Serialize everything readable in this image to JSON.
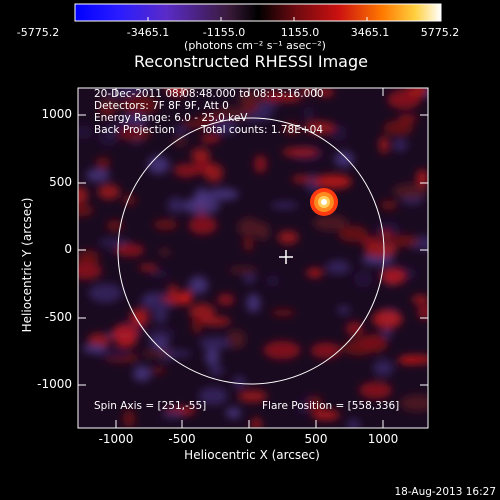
{
  "colorbar": {
    "tick_labels": [
      "-5775.2",
      "-3465.1",
      "-1155.0",
      "1155.0",
      "3465.1",
      "5775.2"
    ],
    "unit_label": "(photons cm⁻² s⁻¹ asec⁻²)",
    "range": [
      -5775.2,
      5775.2
    ]
  },
  "title": "Reconstructed RHESSI Image",
  "info": {
    "time_range": "20-Dec-2011 08:08:48.000 to 08:13:16.000",
    "detectors": "Detectors: 7F 8F 9F, Att 0",
    "energy_range": "Energy Range: 6.0 - 25.0 keV",
    "method": "Back Projection",
    "total_counts": "Total counts: 1.78E+04"
  },
  "bottom": {
    "spin_axis": "Spin Axis = [251,-55]",
    "flare_position": "Flare Position = [558,336]"
  },
  "axes": {
    "xlabel": "Heliocentric X (arcsec)",
    "ylabel": "Heliocentric Y (arcsec)",
    "xticks": [
      "-1000",
      "-500",
      "0",
      "500",
      "1000"
    ],
    "yticks": [
      "1000",
      "500",
      "0",
      "-500",
      "-1000"
    ],
    "xlim": [
      -1280,
      1300
    ],
    "ylim": [
      -1300,
      1240
    ]
  },
  "footer": "18-Aug-2013 16:27",
  "colors": {
    "background": "#000000",
    "limb_circle": "#ffffff"
  }
}
